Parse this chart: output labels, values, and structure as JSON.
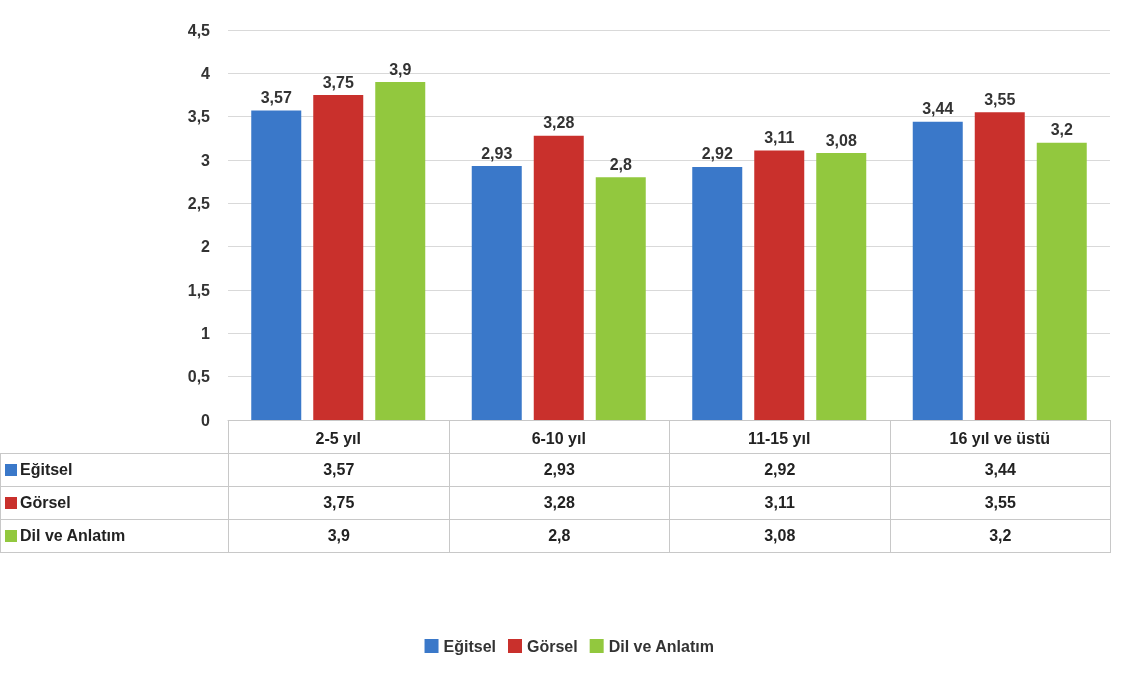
{
  "chart_data": {
    "type": "bar",
    "categories": [
      "2-5 yıl",
      "6-10 yıl",
      "11-15 yıl",
      "16 yıl ve üstü"
    ],
    "series": [
      {
        "name": "Eğitsel",
        "color": "#3a78c9",
        "values": [
          3.57,
          2.93,
          2.92,
          3.44
        ],
        "value_labels": [
          "3,57",
          "2,93",
          "2,92",
          "3,44"
        ]
      },
      {
        "name": "Görsel",
        "color": "#c9302c",
        "values": [
          3.75,
          3.28,
          3.11,
          3.55
        ],
        "value_labels": [
          "3,75",
          "3,28",
          "3,11",
          "3,55"
        ]
      },
      {
        "name": "Dil ve Anlatım",
        "color": "#92c83e",
        "values": [
          3.9,
          2.8,
          3.08,
          3.2
        ],
        "value_labels": [
          "3,9",
          "2,8",
          "3,08",
          "3,2"
        ]
      }
    ],
    "ylim": [
      0,
      4.5
    ],
    "yticks": [
      0,
      {
        "value": 0.5,
        "label": "0,5"
      },
      1,
      {
        "value": 1.5,
        "label": "1,5"
      },
      2,
      {
        "value": 2.5,
        "label": "2,5"
      },
      3,
      {
        "value": 3.5,
        "label": "3,5"
      },
      4,
      {
        "value": 4.5,
        "label": "4,5"
      }
    ],
    "grid": "y",
    "legend": "bottom"
  }
}
